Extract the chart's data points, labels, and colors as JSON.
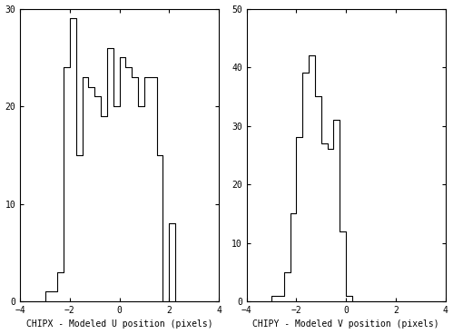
{
  "left_hist": {
    "bin_edges": [
      -4.0,
      -3.5,
      -3.0,
      -2.5,
      -2.25,
      -2.0,
      -1.75,
      -1.5,
      -1.25,
      -1.0,
      -0.75,
      -0.5,
      -0.25,
      0.0,
      0.25,
      0.5,
      0.75,
      1.0,
      1.25,
      1.5,
      1.75,
      2.0,
      2.25,
      2.5,
      3.0,
      3.5,
      4.0
    ],
    "counts": [
      0,
      0,
      1,
      3,
      24,
      29,
      15,
      23,
      22,
      21,
      19,
      26,
      20,
      25,
      24,
      23,
      20,
      23,
      23,
      15,
      0,
      8,
      0,
      0,
      0,
      0
    ],
    "xlabel": "CHIPX - Modeled U position (pixels)",
    "ylim": [
      0,
      30
    ],
    "yticks": [
      0,
      10,
      20,
      30
    ]
  },
  "right_hist": {
    "bin_edges": [
      -4.0,
      -3.5,
      -3.0,
      -2.5,
      -2.25,
      -2.0,
      -1.75,
      -1.5,
      -1.25,
      -1.0,
      -0.75,
      -0.5,
      -0.25,
      0.0,
      0.25,
      0.5,
      0.75,
      1.0,
      1.25,
      1.5,
      1.75,
      2.0,
      2.5,
      3.0,
      3.5,
      4.0
    ],
    "counts": [
      0,
      0,
      1,
      5,
      15,
      28,
      39,
      42,
      35,
      27,
      26,
      31,
      12,
      1,
      0,
      0,
      0,
      0,
      0,
      0,
      0,
      0,
      0,
      0,
      0
    ],
    "xlabel": "CHIPY - Modeled V position (pixels)",
    "ylim": [
      0,
      50
    ],
    "yticks": [
      0,
      10,
      20,
      30,
      40,
      50
    ]
  },
  "xlim": [
    -4,
    4
  ],
  "xticks": [
    -4,
    -2,
    0,
    2,
    4
  ],
  "background_color": "#ffffff",
  "line_color": "#000000",
  "font_family": "monospace",
  "figsize": [
    4.99,
    3.68
  ],
  "dpi": 100
}
